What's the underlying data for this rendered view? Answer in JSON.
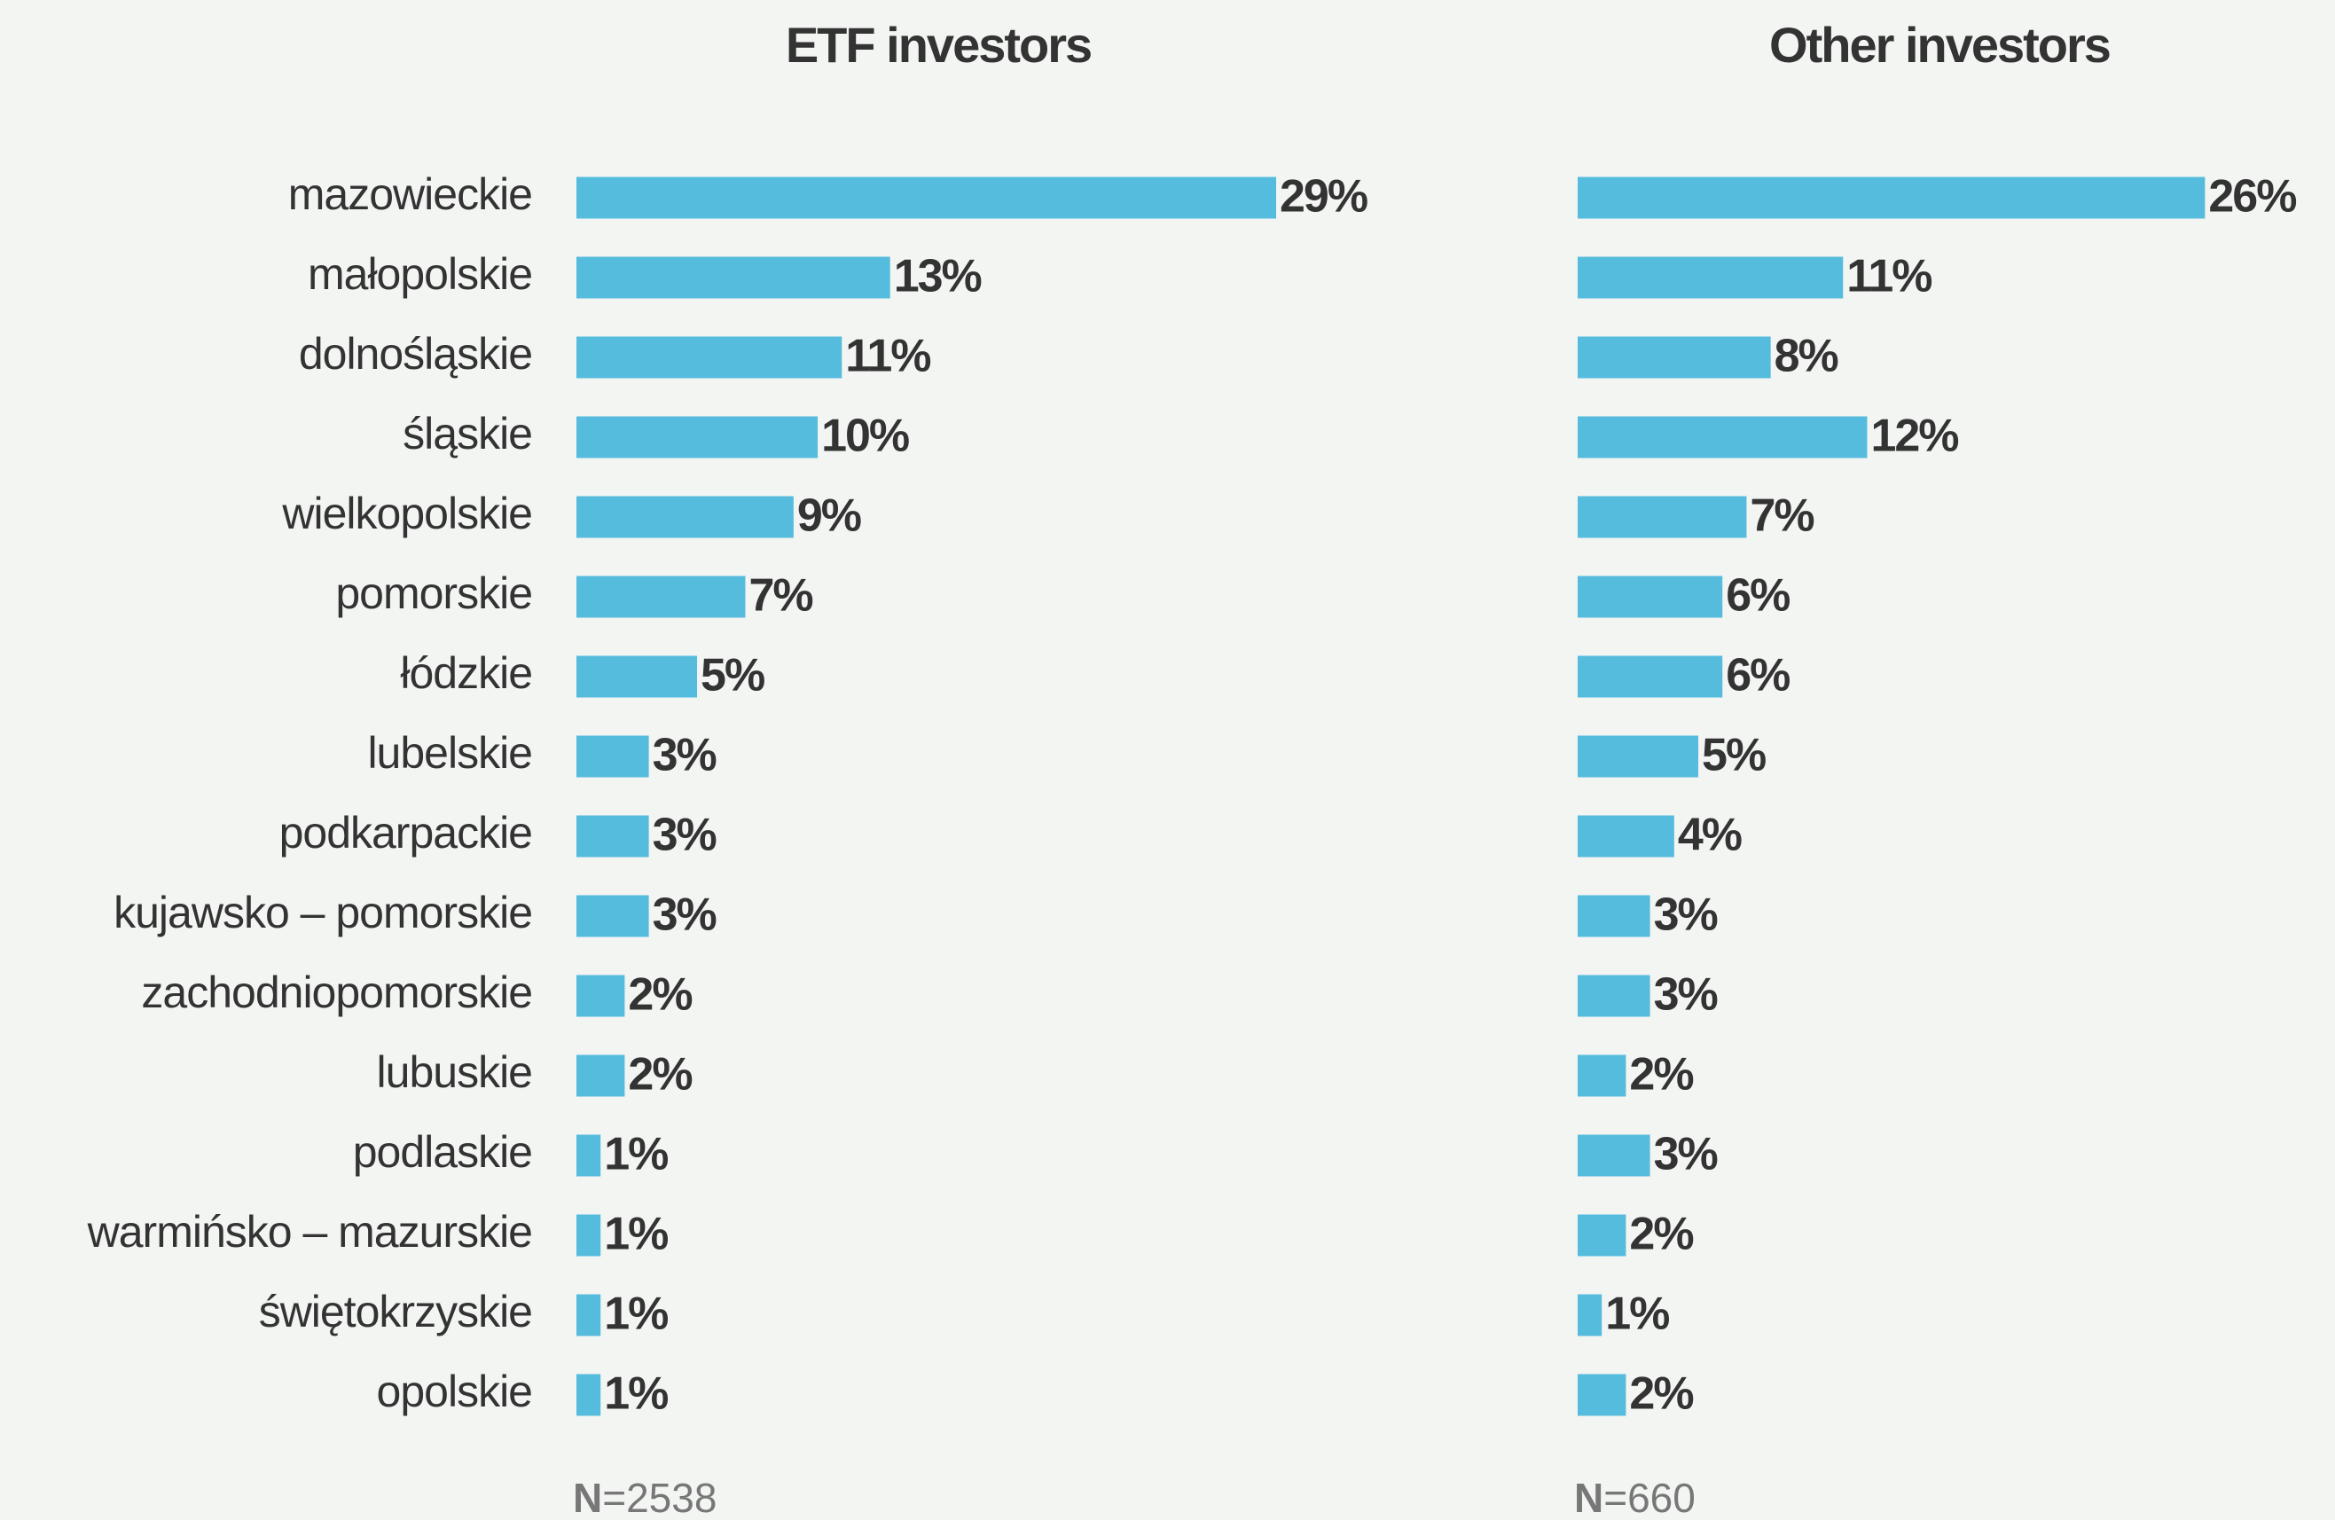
{
  "chart_data": {
    "type": "bar",
    "orientation": "horizontal",
    "color": "#56bcdd",
    "categories": [
      "mazowieckie",
      "małopolskie",
      "dolnośląskie",
      "śląskie",
      "wielkopolskie",
      "pomorskie",
      "łódzkie",
      "lubelskie",
      "podkarpackie",
      "kujawsko – pomorskie",
      "zachodniopomorskie",
      "lubuskie",
      "podlaskie",
      "warmińsko – mazurskie",
      "świętokrzyskie",
      "opolskie"
    ],
    "series": [
      {
        "name": "ETF investors",
        "values": [
          29,
          13,
          11,
          10,
          9,
          7,
          5,
          3,
          3,
          3,
          2,
          2,
          1,
          1,
          1,
          1
        ],
        "value_labels": [
          "29%",
          "13%",
          "11%",
          "10%",
          "9%",
          "7%",
          "5%",
          "3%",
          "3%",
          "3%",
          "2%",
          "2%",
          "1%",
          "1%",
          "1%",
          "1%"
        ],
        "note": [
          "N",
          "=2538"
        ]
      },
      {
        "name": "Other investors",
        "values": [
          26,
          11,
          8,
          12,
          7,
          6,
          6,
          5,
          4,
          3,
          3,
          2,
          3,
          2,
          1,
          2
        ],
        "value_labels": [
          "26%",
          "11%",
          "8%",
          "12%",
          "7%",
          "6%",
          "6%",
          "5%",
          "4%",
          "3%",
          "3%",
          "2%",
          "3%",
          "2%",
          "1%",
          "2%"
        ],
        "note": [
          "N",
          "=660"
        ]
      }
    ]
  }
}
